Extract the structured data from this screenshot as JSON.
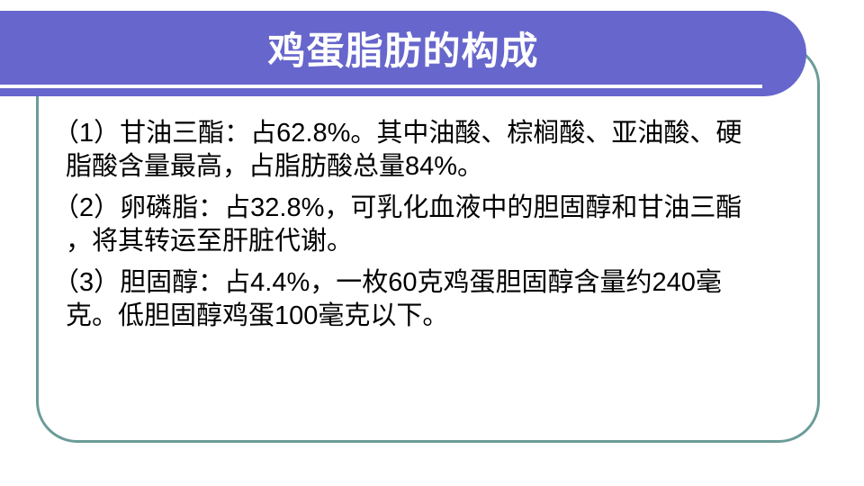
{
  "slide": {
    "title": "鸡蛋脂肪的构成",
    "colors": {
      "header_purple": "#6666cc",
      "frame_teal": "#6b9c98",
      "title_white": "#ffffff",
      "body_black": "#000000"
    },
    "body": {
      "paragraphs": [
        {
          "text": "（1）甘油三酯：占62.8%。其中油酸、棕榈酸、亚油酸、硬脂酸含量最高，占脂肪酸总量84%。",
          "lines": [
            "（1）甘油三酯：占62.8%。其中油酸、棕榈酸、亚油酸、硬",
            "脂酸含量最高，占脂肪酸总量84%。"
          ]
        },
        {
          "text": "（2）卵磷脂：占32.8%，可乳化血液中的胆固醇和甘油三酯，将其转运至肝脏代谢。",
          "lines": [
            "（2）卵磷脂：占32.8%，可乳化血液中的胆固醇和甘油三酯",
            "，将其转运至肝脏代谢。"
          ]
        },
        {
          "text": "（3）胆固醇：占4.4%，一枚60克鸡蛋胆固醇含量约240毫克。低胆固醇鸡蛋100毫克以下。",
          "lines": [
            "（3）胆固醇：占4.4%，一枚60克鸡蛋胆固醇含量约240毫",
            "克。低胆固醇鸡蛋100毫克以下。"
          ]
        }
      ]
    }
  }
}
